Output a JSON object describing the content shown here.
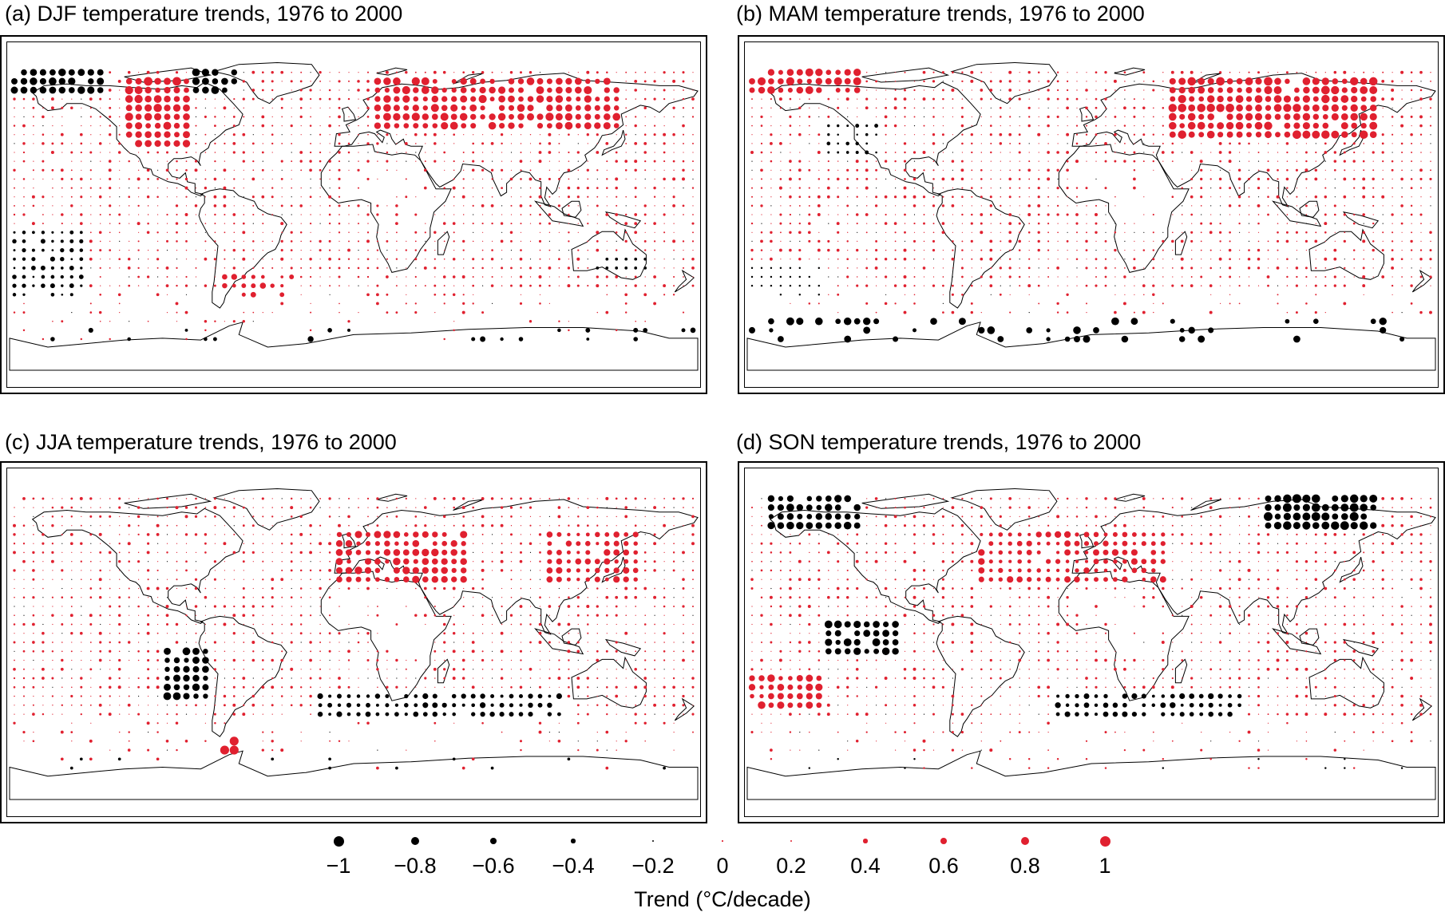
{
  "panels": [
    {
      "id": "a",
      "title": "(a) DJF temperature trends, 1976 to 2000",
      "season": "DJF"
    },
    {
      "id": "b",
      "title": "(b) MAM temperature trends, 1976 to 2000",
      "season": "MAM"
    },
    {
      "id": "c",
      "title": "(c) JJA temperature trends, 1976 to 2000",
      "season": "JJA"
    },
    {
      "id": "d",
      "title": "(d) SON temperature trends, 1976 to 2000",
      "season": "SON"
    }
  ],
  "legend": {
    "title": "Trend (°C/decade)",
    "items": [
      {
        "label": "−1",
        "value": -1.0
      },
      {
        "label": "−0.8",
        "value": -0.8
      },
      {
        "label": "−0.6",
        "value": -0.6
      },
      {
        "label": "−0.4",
        "value": -0.4
      },
      {
        "label": "−0.2",
        "value": -0.2
      },
      {
        "label": "0",
        "value": 0.0
      },
      {
        "label": "0.2",
        "value": 0.2
      },
      {
        "label": "0.4",
        "value": 0.4
      },
      {
        "label": "0.6",
        "value": 0.6
      },
      {
        "label": "0.8",
        "value": 0.8
      },
      {
        "label": "1",
        "value": 1.0
      }
    ]
  },
  "colors": {
    "warming": "#e0202f",
    "cooling": "#000000",
    "coastline": "#000000"
  }
}
